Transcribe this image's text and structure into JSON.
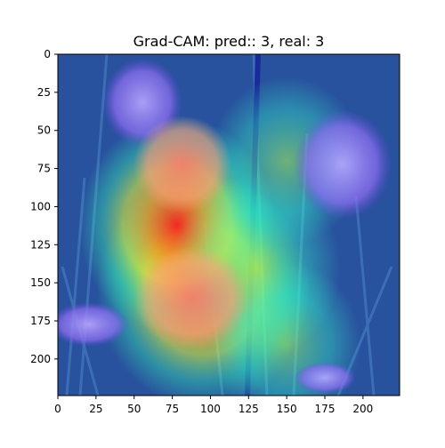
{
  "chart_data": {
    "type": "heatmap",
    "title": "Grad-CAM: pred:: 3, real: 3",
    "xlabel": "",
    "ylabel": "",
    "xlim": [
      0,
      224
    ],
    "ylim": [
      224,
      0
    ],
    "xticks": [
      0,
      25,
      50,
      75,
      100,
      125,
      150,
      175,
      200
    ],
    "yticks": [
      0,
      25,
      50,
      75,
      100,
      125,
      150,
      175,
      200
    ],
    "colormap": "jet",
    "overlay": "flower photograph with Grad-CAM heatmap",
    "activation_peaks": [
      {
        "x": 95,
        "y": 155,
        "intensity": 1.0
      },
      {
        "x": 78,
        "y": 112,
        "intensity": 0.85
      },
      {
        "x": 130,
        "y": 140,
        "intensity": 0.6
      },
      {
        "x": 150,
        "y": 70,
        "intensity": 0.45
      },
      {
        "x": 150,
        "y": 190,
        "intensity": 0.4
      }
    ],
    "grid": false,
    "legend": "none"
  }
}
